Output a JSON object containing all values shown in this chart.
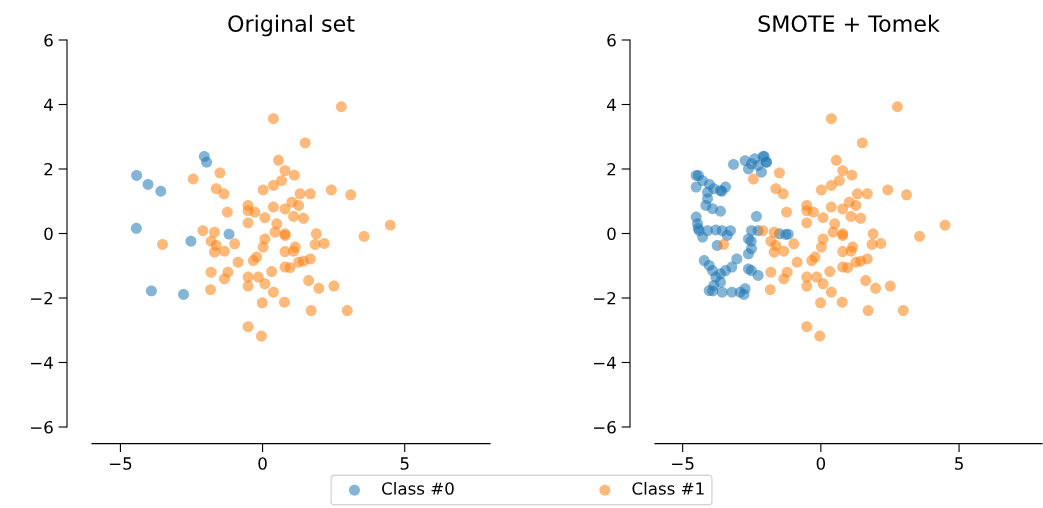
{
  "chart_data": [
    {
      "type": "scatter",
      "title": "Original set",
      "xlim": [
        -6,
        8
      ],
      "ylim": [
        -6,
        6
      ],
      "xticks": [
        -5,
        0,
        5
      ],
      "yticks": [
        -6,
        -4,
        -2,
        0,
        2,
        4,
        6
      ],
      "grid": false,
      "legend": "bottom",
      "marker": "circle",
      "series": [
        {
          "name": "Class #0",
          "color": "#1f77b4",
          "x": [
            -4.43,
            -4.03,
            -3.58,
            -2.05,
            -1.97,
            -4.44,
            -2.52,
            -1.18,
            -3.91,
            -2.78
          ],
          "values": [
            1.8,
            1.52,
            1.31,
            2.39,
            2.21,
            0.16,
            -0.24,
            -0.02,
            -1.78,
            -1.89
          ]
        },
        {
          "name": "Class #1",
          "color": "#ff7f0e",
          "x": [
            0.38,
            0.56,
            0.79,
            -2.44,
            -1.5,
            -1.63,
            -1.36,
            0.02,
            0.38,
            0.67,
            -1.24,
            -0.51,
            -0.51,
            -0.27,
            0.38,
            0.79,
            0.08,
            -0.51,
            0.5,
            -2.1,
            -1.69,
            -1.81,
            -1.63,
            -0.98,
            0.08,
            0.44,
            0.79,
            0.02,
            -1.69,
            -1.34,
            -3.52,
            -0.86,
            -0.33,
            -0.21,
            0.32,
            0.79,
            -1.81,
            -1.22,
            -1.34,
            -0.51,
            -0.15,
            -0.51,
            0.08,
            -1.83,
            0.38,
            -0.01,
            0.77,
            -0.51,
            -0.04,
            2.77,
            1.5,
            1.12,
            1.32,
            1.68,
            2.42,
            3.1,
            1.27,
            1.03,
            1.09,
            1.44,
            4.49,
            3.57,
            1.89,
            1.85,
            2.17,
            0.79,
            1.15,
            0.79,
            1.09,
            1.68,
            1.44,
            1.27,
            0.97,
            1.62,
            2.51,
            1.98,
            1.71,
            2.98
          ],
          "values": [
            3.56,
            2.27,
            1.95,
            1.69,
            1.88,
            1.39,
            1.23,
            1.35,
            1.49,
            1.64,
            0.66,
            0.87,
            0.71,
            0.66,
            0.82,
            0.76,
            0.49,
            0.33,
            0.3,
            0.09,
            0.04,
            -0.24,
            -0.37,
            -0.32,
            -0.17,
            0.04,
            -0.01,
            -0.42,
            -0.58,
            -0.55,
            -0.34,
            -0.89,
            -0.84,
            -0.73,
            -1.18,
            -1.04,
            -1.2,
            -1.2,
            -1.41,
            -1.35,
            -1.35,
            -1.63,
            -1.56,
            -1.74,
            -1.82,
            -2.15,
            -2.13,
            -2.89,
            -3.18,
            3.93,
            2.81,
            1.81,
            1.23,
            1.23,
            1.35,
            1.2,
            0.87,
            0.97,
            0.53,
            0.47,
            0.26,
            -0.09,
            -0.01,
            -0.34,
            -0.31,
            -0.06,
            -0.42,
            -0.56,
            -0.55,
            -0.79,
            -0.86,
            -0.89,
            -1.06,
            -1.46,
            -1.63,
            -1.7,
            -2.39,
            -2.39
          ]
        }
      ]
    },
    {
      "type": "scatter",
      "title": "SMOTE + Tomek",
      "xlim": [
        -6,
        8
      ],
      "ylim": [
        -6,
        6
      ],
      "xticks": [
        -5,
        0,
        5
      ],
      "yticks": [
        -6,
        -4,
        -2,
        0,
        2,
        4,
        6
      ],
      "grid": false,
      "marker": "circle",
      "series": [
        {
          "name": "Class #0",
          "color": "#1f77b4",
          "x": [
            -4.43,
            -4.03,
            -3.58,
            -2.05,
            -1.97,
            -4.44,
            -2.52,
            -1.18,
            -3.91,
            -2.78,
            -3.16,
            -2.74,
            -2.39,
            -2.09,
            -1.97,
            -2.27,
            -2.62,
            -2.15,
            -2.51,
            -4.51,
            -4.28,
            -3.87,
            -3.63,
            -3.45,
            -4.51,
            -4.1,
            -4.1,
            -4.16,
            -3.92,
            -3.63,
            -4.51,
            -4.46,
            -4.4,
            -4.28,
            -4.1,
            -3.8,
            -3.57,
            -3.27,
            -3.39,
            -3.75,
            -2.33,
            -2.51,
            -2.62,
            -2.51,
            -2.62,
            -2.27,
            -1.27,
            -1.5,
            -4.22,
            -4.04,
            -3.92,
            -3.8,
            -3.63,
            -4.04,
            -3.57,
            -3.22,
            -2.92,
            -2.74,
            -3.04,
            -3.45,
            -3.22,
            -2.62,
            -2.27,
            -3.63,
            -3.87,
            -2.51
          ],
          "values": [
            1.8,
            1.52,
            1.31,
            2.39,
            2.21,
            0.16,
            -0.24,
            -0.02,
            -1.78,
            -1.89,
            2.14,
            2.26,
            2.32,
            2.39,
            2.21,
            2.11,
            2.0,
            1.9,
            2.16,
            1.8,
            1.64,
            1.39,
            1.33,
            1.44,
            1.44,
            1.28,
            1.08,
            0.87,
            0.77,
            0.69,
            0.51,
            0.3,
            0.09,
            -0.11,
            0.09,
            0.11,
            0.09,
            0.09,
            -0.06,
            -0.37,
            0.53,
            0.09,
            -0.17,
            -0.47,
            -0.63,
            0.09,
            -0.03,
            -0.01,
            -0.84,
            -0.99,
            -1.15,
            -1.35,
            -1.51,
            -1.77,
            -1.82,
            -1.82,
            -1.82,
            -1.71,
            -0.79,
            -1.15,
            -1.04,
            -1.1,
            -1.3,
            -1.25,
            -1.61,
            -1.15
          ]
        },
        {
          "name": "Class #1",
          "color": "#ff7f0e",
          "x": [
            0.38,
            0.56,
            0.79,
            -2.44,
            -1.5,
            -1.63,
            -1.36,
            0.02,
            0.38,
            0.67,
            -1.24,
            -0.51,
            -0.51,
            -0.27,
            0.38,
            0.79,
            0.08,
            -0.51,
            0.5,
            -2.1,
            -1.69,
            -1.81,
            -1.63,
            -0.98,
            0.08,
            0.44,
            0.79,
            0.02,
            -1.69,
            -1.34,
            -3.52,
            -0.86,
            -0.33,
            -0.21,
            0.32,
            0.79,
            -1.81,
            -1.22,
            -1.34,
            -0.51,
            -0.15,
            -0.51,
            0.08,
            -1.83,
            0.38,
            -0.01,
            0.77,
            -0.51,
            -0.04,
            2.77,
            1.5,
            1.12,
            1.32,
            1.68,
            2.42,
            3.1,
            1.27,
            1.03,
            1.09,
            1.44,
            4.49,
            3.57,
            1.89,
            1.85,
            2.17,
            0.79,
            1.15,
            0.79,
            1.09,
            1.68,
            1.44,
            1.27,
            0.97,
            1.62,
            2.51,
            1.98,
            1.71,
            2.98
          ],
          "values": [
            3.56,
            2.27,
            1.95,
            1.69,
            1.88,
            1.39,
            1.23,
            1.35,
            1.49,
            1.64,
            0.66,
            0.87,
            0.71,
            0.66,
            0.82,
            0.76,
            0.49,
            0.33,
            0.3,
            0.09,
            0.04,
            -0.24,
            -0.37,
            -0.32,
            -0.17,
            0.04,
            -0.01,
            -0.42,
            -0.58,
            -0.55,
            -0.34,
            -0.89,
            -0.84,
            -0.73,
            -1.18,
            -1.04,
            -1.2,
            -1.2,
            -1.41,
            -1.35,
            -1.35,
            -1.63,
            -1.56,
            -1.74,
            -1.82,
            -2.15,
            -2.13,
            -2.89,
            -3.18,
            3.93,
            2.81,
            1.81,
            1.23,
            1.23,
            1.35,
            1.2,
            0.87,
            0.97,
            0.53,
            0.47,
            0.26,
            -0.09,
            -0.01,
            -0.34,
            -0.31,
            -0.06,
            -0.42,
            -0.56,
            -0.55,
            -0.79,
            -0.86,
            -0.89,
            -1.06,
            -1.46,
            -1.63,
            -1.7,
            -2.39,
            -2.39
          ]
        }
      ]
    }
  ]
}
